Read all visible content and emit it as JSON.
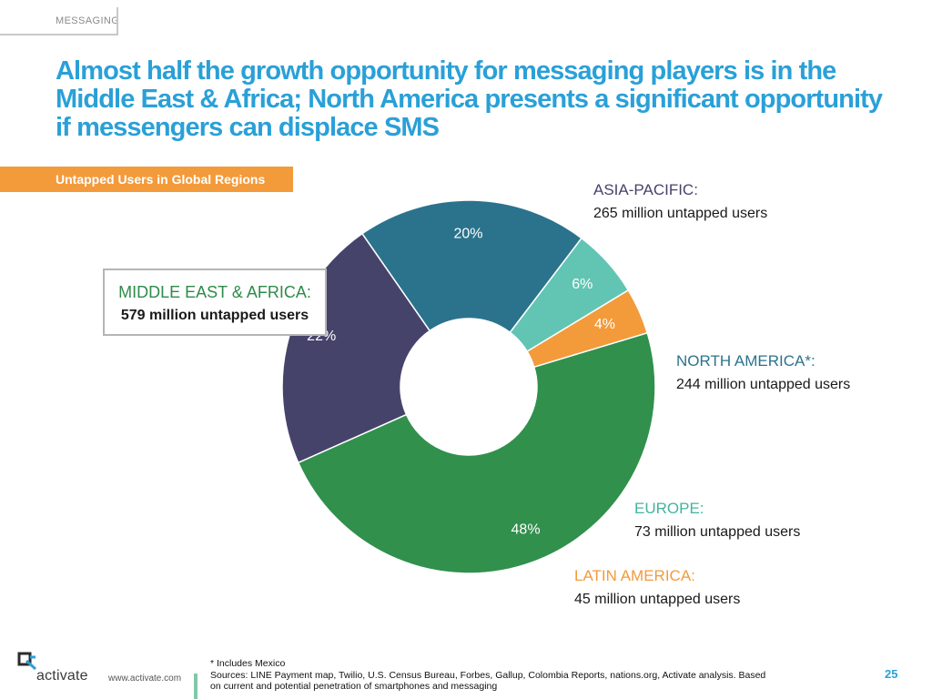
{
  "header": {
    "section": "MESSAGING",
    "title": "Almost half the growth opportunity for messaging players is in the Middle East & Africa; North America presents a significant opportunity if messengers can displace SMS"
  },
  "chart_tag": "Untapped Users in Global Regions",
  "colors": {
    "accent": "#2aa0d7",
    "tag": "#f39a3b",
    "asia_pacific": "#46436b",
    "north_america": "#2b738c",
    "europe": "#62c5b3",
    "latin_america": "#f39a3b",
    "middle_east_africa": "#30904c"
  },
  "chart_data": {
    "type": "pie",
    "title": "Untapped Users in Global Regions",
    "style": "donut",
    "slices": [
      {
        "name": "ASIA-PACIFIC:",
        "value": 22,
        "label": "22%",
        "users": "265 million untapped users",
        "color": "#46436b"
      },
      {
        "name": "NORTH AMERICA*:",
        "value": 20,
        "label": "20%",
        "users": "244 million untapped users",
        "color": "#2b738c"
      },
      {
        "name": "EUROPE:",
        "value": 6,
        "label": "6%",
        "users": "73 million untapped users",
        "color": "#62c5b3"
      },
      {
        "name": "LATIN AMERICA:",
        "value": 4,
        "label": "4%",
        "users": "45 million untapped users",
        "color": "#f39a3b"
      },
      {
        "name": "MIDDLE EAST & AFRICA:",
        "value": 48,
        "label": "48%",
        "users": "579 million untapped users",
        "color": "#30904c"
      }
    ]
  },
  "footer": {
    "logo": "activate",
    "url": "www.activate.com",
    "footnote_line1": "* Includes Mexico",
    "footnote_line2": "Sources: LINE Payment map, Twilio, U.S. Census Bureau, Forbes, Gallup, Colombia Reports, nations.org, Activate analysis.  Based",
    "footnote_line3": "on current and potential penetration of smartphones and messaging",
    "page_number": "25"
  }
}
